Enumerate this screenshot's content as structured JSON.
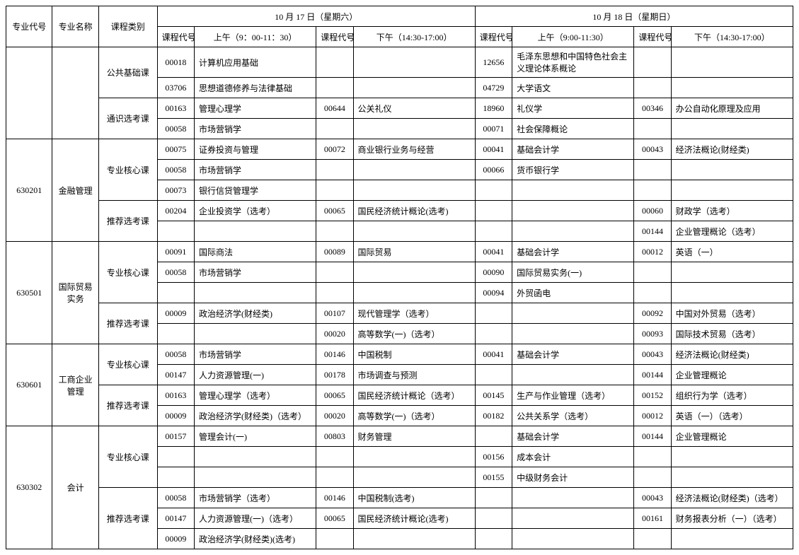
{
  "header": {
    "major_code": "专业代号",
    "major_name": "专业名称",
    "course_cat": "课程类别",
    "day1": "10 月 17 日（星期六）",
    "day2": "10 月 18 日（星期日）",
    "code": "课程代号",
    "am1": "上午（9：00-11：30）",
    "pm1": "下午（14:30-17:00）",
    "am2": "上午（9:00-11:30）",
    "pm2": "下午（14:30-17:00）"
  },
  "blocks": [
    {
      "major_code": "",
      "major_name": "",
      "cats": [
        {
          "cat": "公共基础课",
          "rows": [
            {
              "c1": "00018",
              "n1": "计算机应用基础",
              "c2": "",
              "n2": "",
              "c3": "12656",
              "n3": "毛泽东思想和中国特色社会主义理论体系概论",
              "c4": "",
              "n4": ""
            },
            {
              "c1": "03706",
              "n1": "思想道德修养与法律基础",
              "c2": "",
              "n2": "",
              "c3": "04729",
              "n3": "大学语文",
              "c4": "",
              "n4": ""
            }
          ]
        },
        {
          "cat": "通识选考课",
          "rows": [
            {
              "c1": "00163",
              "n1": "管理心理学",
              "c2": "00644",
              "n2": "公关礼仪",
              "c3": "18960",
              "n3": "礼仪学",
              "c4": "00346",
              "n4": "办公自动化原理及应用"
            },
            {
              "c1": "00058",
              "n1": "市场营销学",
              "c2": "",
              "n2": "",
              "c3": "00071",
              "n3": "社会保障概论",
              "c4": "",
              "n4": ""
            }
          ]
        }
      ]
    },
    {
      "major_code": "630201",
      "major_name": "金融管理",
      "cats": [
        {
          "cat": "专业核心课",
          "rows": [
            {
              "c1": "00075",
              "n1": "证券投资与管理",
              "c2": "00072",
              "n2": "商业银行业务与经营",
              "c3": "00041",
              "n3": "基础会计学",
              "c4": "00043",
              "n4": "经济法概论(财经类)"
            },
            {
              "c1": "00058",
              "n1": "市场营销学",
              "c2": "",
              "n2": "",
              "c3": "00066",
              "n3": "货币银行学",
              "c4": "",
              "n4": ""
            },
            {
              "c1": "00073",
              "n1": "银行信贷管理学",
              "c2": "",
              "n2": "",
              "c3": "",
              "n3": "",
              "c4": "",
              "n4": ""
            }
          ]
        },
        {
          "cat": "推荐选考课",
          "rows": [
            {
              "c1": "00204",
              "n1": "企业投资学（选考）",
              "c2": "00065",
              "n2": "国民经济统计概论(选考)",
              "c3": "",
              "n3": "",
              "c4": "00060",
              "n4": "财政学（选考）"
            },
            {
              "c1": "",
              "n1": "",
              "c2": "",
              "n2": "",
              "c3": "",
              "n3": "",
              "c4": "00144",
              "n4": "企业管理概论（选考）"
            }
          ]
        }
      ]
    },
    {
      "major_code": "630501",
      "major_name": "国际贸易实务",
      "cats": [
        {
          "cat": "专业核心课",
          "rows": [
            {
              "c1": "00091",
              "n1": "国际商法",
              "c2": "00089",
              "n2": "国际贸易",
              "c3": "00041",
              "n3": "基础会计学",
              "c4": "00012",
              "n4": "英语（一）"
            },
            {
              "c1": "00058",
              "n1": "市场营销学",
              "c2": "",
              "n2": "",
              "c3": "00090",
              "n3": "国际贸易实务(一)",
              "c4": "",
              "n4": ""
            },
            {
              "c1": "",
              "n1": "",
              "c2": "",
              "n2": "",
              "c3": "00094",
              "n3": "外贸函电",
              "c4": "",
              "n4": ""
            }
          ]
        },
        {
          "cat": "推荐选考课",
          "rows": [
            {
              "c1": "00009",
              "n1": "政治经济学(财经类)",
              "c2": "00107",
              "n2": "现代管理学（选考）",
              "c3": "",
              "n3": "",
              "c4": "00092",
              "n4": "中国对外贸易（选考）"
            },
            {
              "c1": "",
              "n1": "",
              "c2": "00020",
              "n2": "高等数学(一)（选考）",
              "c3": "",
              "n3": "",
              "c4": "00093",
              "n4": "国际技术贸易（选考）"
            }
          ]
        }
      ]
    },
    {
      "major_code": "630601",
      "major_name": "工商企业管理",
      "cats": [
        {
          "cat": "专业核心课",
          "rows": [
            {
              "c1": "00058",
              "n1": "市场营销学",
              "c2": "00146",
              "n2": "中国税制",
              "c3": "00041",
              "n3": "基础会计学",
              "c4": "00043",
              "n4": "经济法概论(财经类)"
            },
            {
              "c1": "00147",
              "n1": "人力资源管理(一)",
              "c2": "00178",
              "n2": "市场调查与预测",
              "c3": "",
              "n3": "",
              "c4": "00144",
              "n4": "企业管理概论"
            }
          ]
        },
        {
          "cat": "推荐选考课",
          "rows": [
            {
              "c1": "00163",
              "n1": "管理心理学（选考）",
              "c2": "00065",
              "n2": "国民经济统计概论（选考）",
              "c3": "00145",
              "n3": "生产与作业管理（选考）",
              "c4": "00152",
              "n4": "组织行为学（选考）"
            },
            {
              "c1": "00009",
              "n1": "政治经济学(财经类)（选考）",
              "c2": "00020",
              "n2": "高等数学(一)（选考）",
              "c3": "00182",
              "n3": "公共关系学（选考）",
              "c4": "00012",
              "n4": "英语（一）（选考）"
            }
          ]
        }
      ]
    },
    {
      "major_code": "630302",
      "major_name": "会计",
      "cats": [
        {
          "cat": "专业核心课",
          "rows": [
            {
              "c1": "00157",
              "n1": "管理会计(一)",
              "c2": "00803",
              "n2": "财务管理",
              "c3": "",
              "n3": "基础会计学",
              "c4": "00144",
              "n4": "企业管理概论"
            },
            {
              "c1": "",
              "n1": "",
              "c2": "",
              "n2": "",
              "c3": "00156",
              "n3": "成本会计",
              "c4": "",
              "n4": ""
            },
            {
              "c1": "",
              "n1": "",
              "c2": "",
              "n2": "",
              "c3": "00155",
              "n3": "中级财务会计",
              "c4": "",
              "n4": ""
            }
          ]
        },
        {
          "cat": "推荐选考课",
          "rows": [
            {
              "c1": "00058",
              "n1": "市场营销学（选考）",
              "c2": "00146",
              "n2": "中国税制(选考)",
              "c3": "",
              "n3": "",
              "c4": "00043",
              "n4": "经济法概论(财经类)（选考）"
            },
            {
              "c1": "00147",
              "n1": "人力资源管理(一)（选考）",
              "c2": "00065",
              "n2": "国民经济统计概论(选考)",
              "c3": "",
              "n3": "",
              "c4": "00161",
              "n4": "财务报表分析（一）（选考）"
            },
            {
              "c1": "00009",
              "n1": "政治经济学(财经类)(选考)",
              "c2": "",
              "n2": "",
              "c3": "",
              "n3": "",
              "c4": "",
              "n4": ""
            }
          ]
        }
      ]
    }
  ]
}
